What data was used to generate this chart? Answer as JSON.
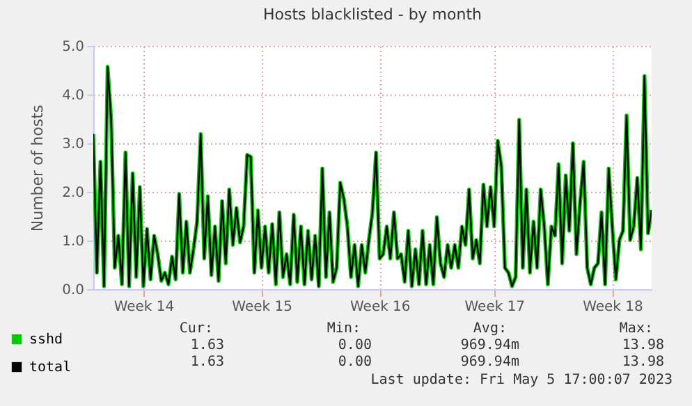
{
  "chart_data": {
    "type": "line",
    "title": "Hosts blacklisted - by month",
    "ylabel": "Number of hosts",
    "categories": [
      null,
      null,
      null,
      null,
      null,
      null,
      null,
      null,
      null,
      null,
      null,
      null,
      null,
      null,
      "Week 14",
      null,
      null,
      null,
      null,
      null,
      null,
      null,
      null,
      null,
      null,
      null,
      null,
      null,
      null,
      null,
      null,
      null,
      null,
      null,
      null,
      null,
      null,
      null,
      null,
      null,
      null,
      null,
      null,
      null,
      null,
      null,
      null,
      "Week 15",
      null,
      null,
      null,
      null,
      null,
      null,
      null,
      null,
      null,
      null,
      null,
      null,
      null,
      null,
      null,
      null,
      null,
      null,
      null,
      null,
      null,
      null,
      null,
      null,
      null,
      null,
      null,
      null,
      null,
      null,
      null,
      null,
      "Week 16",
      null,
      null,
      null,
      null,
      null,
      null,
      null,
      null,
      null,
      null,
      null,
      null,
      null,
      null,
      null,
      null,
      null,
      null,
      null,
      null,
      null,
      null,
      null,
      null,
      null,
      null,
      null,
      null,
      null,
      null,
      null,
      "Week 17",
      null,
      null,
      null,
      null,
      null,
      null,
      null,
      null,
      null,
      null,
      null,
      null,
      null,
      null,
      null,
      null,
      null,
      null,
      null,
      null,
      null,
      null,
      null,
      null,
      null,
      null,
      null,
      null,
      null,
      null,
      null,
      null,
      "Week 18",
      null,
      null,
      null,
      null,
      null,
      null,
      null,
      null,
      null,
      null,
      null
    ],
    "series": [
      {
        "name": "sshd",
        "color": "#00cc00",
        "values": [
          3.19,
          0.34,
          2.62,
          0.06,
          4.57,
          3.48,
          0.44,
          1.1,
          0.1,
          2.81,
          0.06,
          2.38,
          0.25,
          2.1,
          0.06,
          1.24,
          0.2,
          1.1,
          0.72,
          0.17,
          0.34,
          0.1,
          0.67,
          0.2,
          1.96,
          0.34,
          1.39,
          0.34,
          0.82,
          1.39,
          3.19,
          0.63,
          1.91,
          0.29,
          1.29,
          0.17,
          1.81,
          0.53,
          2.05,
          0.91,
          1.67,
          0.96,
          1.29,
          2.76,
          2.72,
          0.34,
          1.62,
          0.44,
          1.29,
          0.34,
          1.34,
          0.1,
          1.58,
          0.25,
          0.72,
          0.1,
          1.53,
          0.15,
          1.29,
          0.1,
          1.2,
          0.2,
          1.1,
          0.06,
          2.48,
          0.25,
          1.58,
          0.15,
          0.44,
          2.19,
          1.86,
          1.29,
          0.25,
          0.91,
          0.06,
          0.91,
          0.34,
          1.01,
          1.58,
          2.81,
          0.63,
          0.72,
          1.29,
          0.63,
          1.58,
          0.63,
          0.72,
          0.15,
          1.2,
          0.06,
          0.82,
          0.1,
          1.2,
          0.1,
          0.91,
          0.1,
          1.48,
          0.53,
          0.25,
          0.91,
          0.44,
          0.91,
          0.44,
          1.29,
          0.91,
          2.05,
          0.63,
          1.01,
          0.53,
          2.15,
          1.29,
          2.1,
          1.29,
          3.05,
          2.53,
          0.44,
          0.34,
          0.06,
          0.25,
          3.48,
          0.44,
          2.05,
          0.34,
          1.39,
          0.44,
          2.05,
          1.29,
          0.1,
          1.29,
          1.1,
          2.57,
          0.53,
          2.34,
          1.2,
          3.0,
          0.72,
          1.77,
          2.62,
          0.44,
          0.1,
          0.44,
          0.53,
          1.58,
          0.1,
          2.48,
          1.29,
          0.2,
          1.01,
          1.2,
          3.57,
          1.01,
          1.29,
          2.29,
          0.82,
          4.38,
          1.15,
          1.63
        ]
      },
      {
        "name": "total",
        "color": "#000000",
        "values": [
          3.19,
          0.34,
          2.62,
          0.06,
          4.57,
          3.48,
          0.44,
          1.1,
          0.1,
          2.81,
          0.06,
          2.38,
          0.25,
          2.1,
          0.06,
          1.24,
          0.2,
          1.1,
          0.72,
          0.17,
          0.34,
          0.1,
          0.67,
          0.2,
          1.96,
          0.34,
          1.39,
          0.34,
          0.82,
          1.39,
          3.19,
          0.63,
          1.91,
          0.29,
          1.29,
          0.17,
          1.81,
          0.53,
          2.05,
          0.91,
          1.67,
          0.96,
          1.29,
          2.76,
          2.72,
          0.34,
          1.62,
          0.44,
          1.29,
          0.34,
          1.34,
          0.1,
          1.58,
          0.25,
          0.72,
          0.1,
          1.53,
          0.15,
          1.29,
          0.1,
          1.2,
          0.2,
          1.1,
          0.06,
          2.48,
          0.25,
          1.58,
          0.15,
          0.44,
          2.19,
          1.86,
          1.29,
          0.25,
          0.91,
          0.06,
          0.91,
          0.34,
          1.01,
          1.58,
          2.81,
          0.63,
          0.72,
          1.29,
          0.63,
          1.58,
          0.63,
          0.72,
          0.15,
          1.2,
          0.06,
          0.82,
          0.1,
          1.2,
          0.1,
          0.91,
          0.1,
          1.48,
          0.53,
          0.25,
          0.91,
          0.44,
          0.91,
          0.44,
          1.29,
          0.91,
          2.05,
          0.63,
          1.01,
          0.53,
          2.15,
          1.29,
          2.1,
          1.29,
          3.05,
          2.53,
          0.44,
          0.34,
          0.06,
          0.25,
          3.48,
          0.44,
          2.05,
          0.34,
          1.39,
          0.44,
          2.05,
          1.29,
          0.1,
          1.29,
          1.1,
          2.57,
          0.53,
          2.34,
          1.2,
          3.0,
          0.72,
          1.77,
          2.62,
          0.44,
          0.1,
          0.44,
          0.53,
          1.58,
          0.1,
          2.48,
          1.29,
          0.2,
          1.01,
          1.2,
          3.57,
          1.01,
          1.29,
          2.29,
          0.82,
          4.38,
          1.15,
          1.63
        ]
      }
    ],
    "ylim": [
      0,
      5
    ],
    "yticks": [
      {
        "value": 0,
        "label": "0.0"
      },
      {
        "value": 1,
        "label": "1.0"
      },
      {
        "value": 2,
        "label": "2.0"
      },
      {
        "value": 3,
        "label": "3.0"
      },
      {
        "value": 4,
        "label": "4.0"
      },
      {
        "value": 5,
        "label": "5.0"
      }
    ],
    "grid": true,
    "legend": "bottom left",
    "marker": "none",
    "line_style": "solid",
    "annotations": [
      "Cur:",
      "Min:",
      "Avg:",
      "Max:",
      "1.63",
      "0.00",
      "969.94m",
      "13.98",
      "1.63",
      "0.00",
      "969.94m",
      "13.98",
      "Last update: Fri May  5 17:00:07 2023"
    ]
  }
}
